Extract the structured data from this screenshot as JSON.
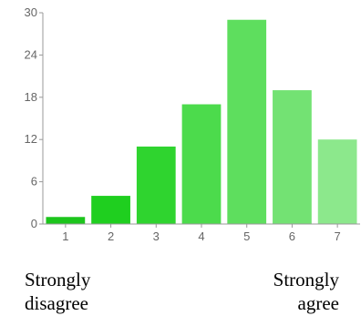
{
  "chart_data": {
    "type": "bar",
    "categories": [
      "1",
      "2",
      "3",
      "4",
      "5",
      "6",
      "7"
    ],
    "values": [
      1,
      4,
      11,
      17,
      29,
      19,
      12
    ],
    "colors": [
      "#1cc51c",
      "#1fcf1f",
      "#2fd42f",
      "#4cdb4c",
      "#5ede5e",
      "#73e273",
      "#8ce88c"
    ],
    "ylim": [
      0,
      30
    ],
    "yticks": [
      0,
      6,
      12,
      18,
      24,
      30
    ],
    "grid": false
  },
  "labels": {
    "left": "Strongly\ndisagree",
    "right": "Strongly\nagree"
  }
}
